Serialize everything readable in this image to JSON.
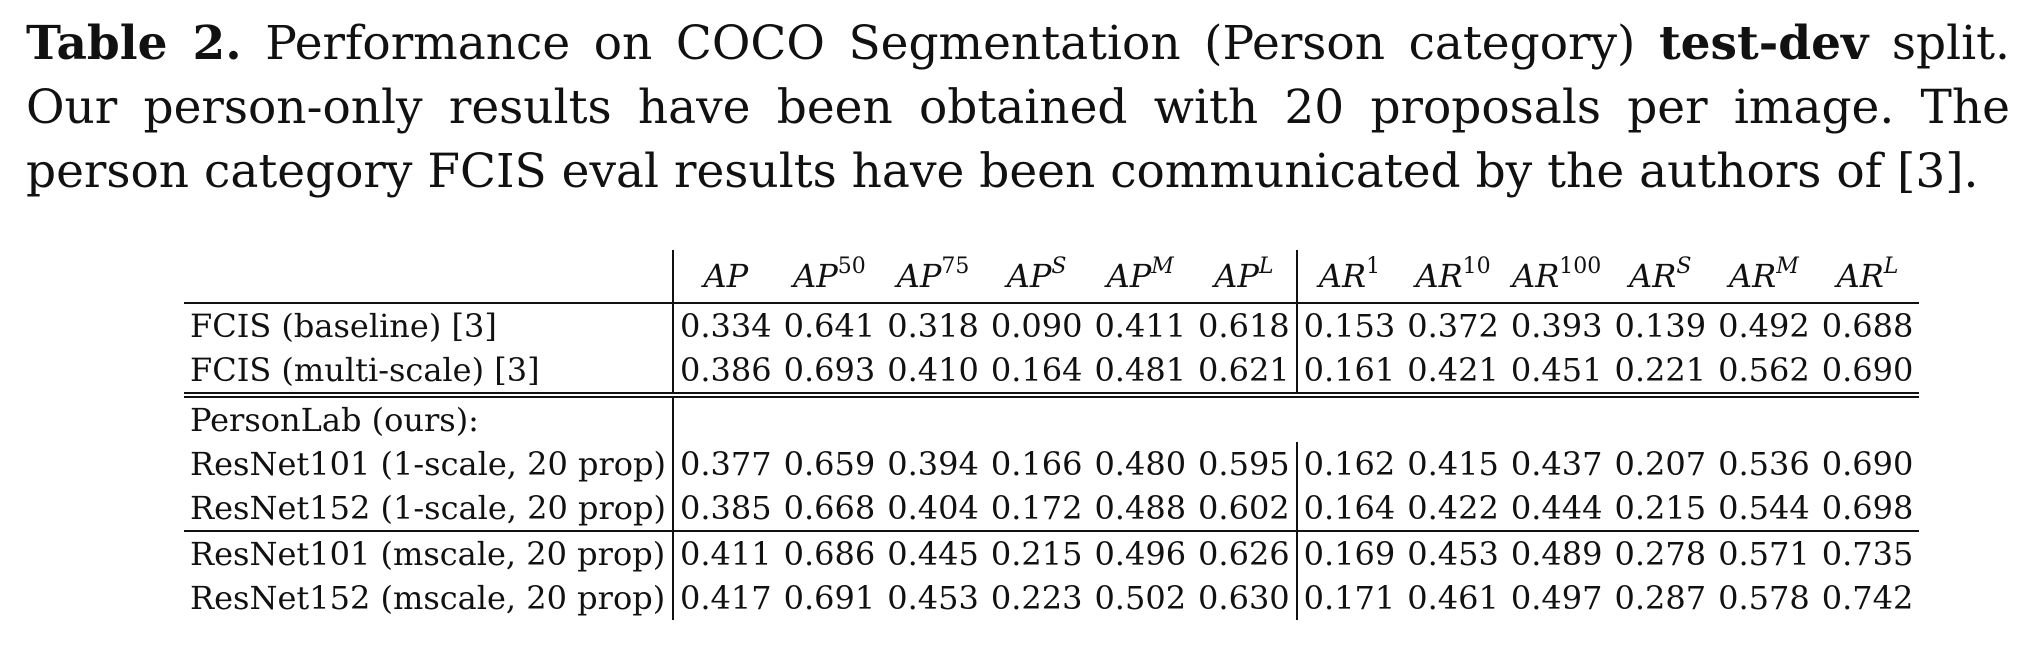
{
  "caption": {
    "label": "Table 2.",
    "text_before_bold": " Performance on COCO Segmentation (Person category) ",
    "bold_phrase": "test-dev",
    "text_after_bold": " split. Our person-only results have been obtained with 20 proposals per image. The person category FCIS eval results have been communicated by the authors of [3]."
  },
  "table": {
    "columns": [
      {
        "base": "AP",
        "sup": ""
      },
      {
        "base": "AP",
        "sup": "50"
      },
      {
        "base": "AP",
        "sup": "75"
      },
      {
        "base": "AP",
        "sup": "S"
      },
      {
        "base": "AP",
        "sup": "M"
      },
      {
        "base": "AP",
        "sup": "L"
      },
      {
        "base": "AR",
        "sup": "1"
      },
      {
        "base": "AR",
        "sup": "10"
      },
      {
        "base": "AR",
        "sup": "100"
      },
      {
        "base": "AR",
        "sup": "S"
      },
      {
        "base": "AR",
        "sup": "M"
      },
      {
        "base": "AR",
        "sup": "L"
      }
    ],
    "baseline_rows": [
      {
        "name": "FCIS (baseline)   [3]",
        "values": [
          "0.334",
          "0.641",
          "0.318",
          "0.090",
          "0.411",
          "0.618",
          "0.153",
          "0.372",
          "0.393",
          "0.139",
          "0.492",
          "0.688"
        ]
      },
      {
        "name": "FCIS (multi-scale)   [3]",
        "values": [
          "0.386",
          "0.693",
          "0.410",
          "0.164",
          "0.481",
          "0.621",
          "0.161",
          "0.421",
          "0.451",
          "0.221",
          "0.562",
          "0.690"
        ]
      }
    ],
    "section_label": "PersonLab (ours):",
    "ours_rows_1scale": [
      {
        "name": "ResNet101 (1-scale, 20 prop)",
        "values": [
          "0.377",
          "0.659",
          "0.394",
          "0.166",
          "0.480",
          "0.595",
          "0.162",
          "0.415",
          "0.437",
          "0.207",
          "0.536",
          "0.690"
        ]
      },
      {
        "name": "ResNet152 (1-scale, 20 prop)",
        "values": [
          "0.385",
          "0.668",
          "0.404",
          "0.172",
          "0.488",
          "0.602",
          "0.164",
          "0.422",
          "0.444",
          "0.215",
          "0.544",
          "0.698"
        ]
      }
    ],
    "ours_rows_mscale": [
      {
        "name": "ResNet101 (mscale, 20 prop)",
        "values": [
          "0.411",
          "0.686",
          "0.445",
          "0.215",
          "0.496",
          "0.626",
          "0.169",
          "0.453",
          "0.489",
          "0.278",
          "0.571",
          "0.735"
        ]
      },
      {
        "name": "ResNet152 (mscale, 20 prop)",
        "values": [
          "0.417",
          "0.691",
          "0.453",
          "0.223",
          "0.502",
          "0.630",
          "0.171",
          "0.461",
          "0.497",
          "0.287",
          "0.578",
          "0.742"
        ]
      }
    ]
  }
}
